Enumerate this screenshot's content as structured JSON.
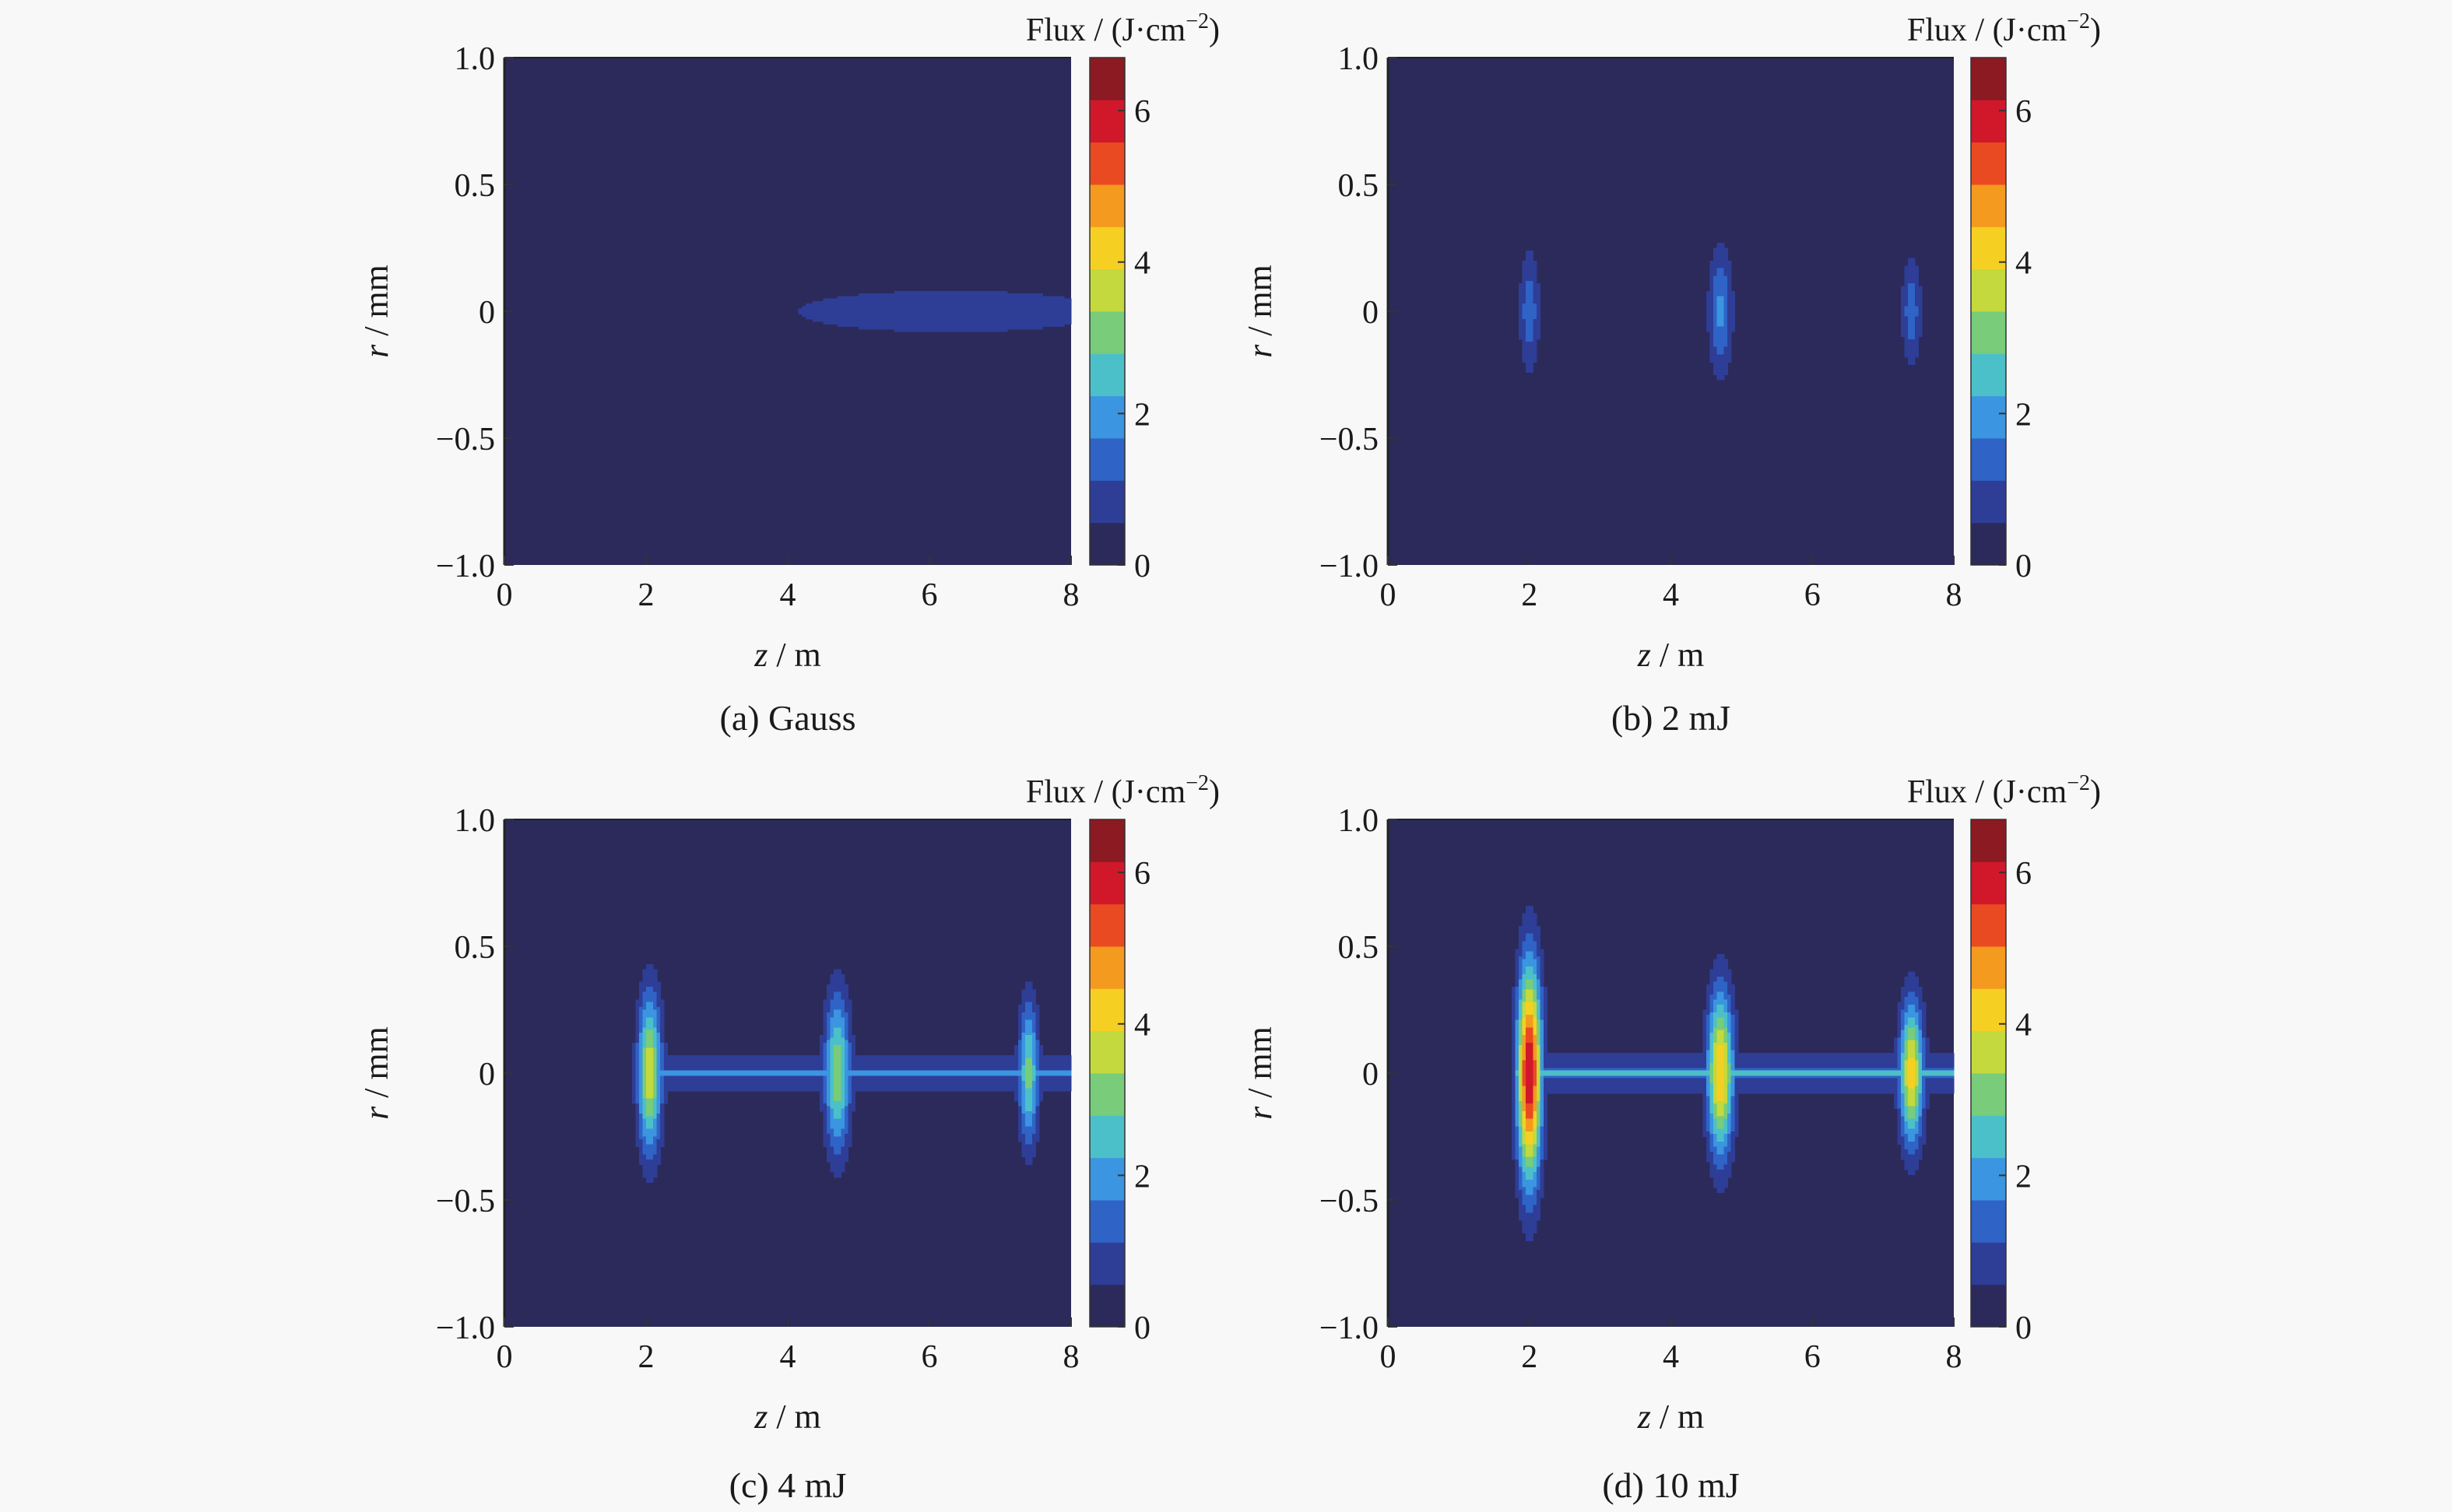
{
  "chart_data": [
    {
      "type": "heatmap",
      "caption": "(a) Gauss",
      "xlabel_var": "z",
      "xlabel_unit": " / m",
      "ylabel_var": "r",
      "ylabel_unit": " / mm",
      "colorbar_label": "Flux / (J·cm",
      "colorbar_exp": "−2",
      "colorbar_close": ")",
      "xlim": [
        0,
        8
      ],
      "ylim": [
        -1.0,
        1.0
      ],
      "clim": [
        0,
        6.7
      ],
      "xticks": [
        "0",
        "2",
        "4",
        "6",
        "8"
      ],
      "yticks": [
        "−1.0",
        "−0.5",
        "0",
        "0.5",
        "1.0"
      ],
      "cticks": [
        "0",
        "2",
        "4",
        "6"
      ],
      "features": [
        {
          "kind": "blob",
          "z": 6.3,
          "r": 0,
          "sz": 2.0,
          "sr": 0.075,
          "value": 1.0
        },
        {
          "kind": "blob",
          "z": 6.2,
          "r": 0,
          "sz": 2.9,
          "sr": 0.105,
          "value": 0.5
        }
      ]
    },
    {
      "type": "heatmap",
      "caption": "(b) 2 mJ",
      "xlabel_var": "z",
      "xlabel_unit": " / m",
      "ylabel_var": "r",
      "ylabel_unit": " / mm",
      "colorbar_label": "Flux / (J·cm",
      "colorbar_exp": "−2",
      "colorbar_close": ")",
      "xlim": [
        0,
        8
      ],
      "ylim": [
        -1.0,
        1.0
      ],
      "clim": [
        0,
        6.7
      ],
      "xticks": [
        "0",
        "2",
        "4",
        "6",
        "8"
      ],
      "yticks": [
        "−1.0",
        "−0.5",
        "0",
        "0.5",
        "1.0"
      ],
      "cticks": [
        "0",
        "2",
        "4",
        "6"
      ],
      "features": [
        {
          "kind": "band",
          "z0": 1.8,
          "z1": 8.0,
          "r": 0,
          "sr": 0.09,
          "value": 0.55
        },
        {
          "kind": "blob",
          "z": 2.0,
          "r": 0,
          "sz": 0.1,
          "sr": 0.17,
          "value": 1.5
        },
        {
          "kind": "blob",
          "z": 4.7,
          "r": 0,
          "sz": 0.12,
          "sr": 0.18,
          "value": 1.8
        },
        {
          "kind": "blob",
          "z": 7.4,
          "r": 0,
          "sz": 0.1,
          "sr": 0.15,
          "value": 1.5
        }
      ]
    },
    {
      "type": "heatmap",
      "caption": "(c) 4 mJ",
      "xlabel_var": "z",
      "xlabel_unit": " / m",
      "ylabel_var": "r",
      "ylabel_unit": " / mm",
      "colorbar_label": "Flux / (J·cm",
      "colorbar_exp": "−2",
      "colorbar_close": ")",
      "xlim": [
        0,
        8
      ],
      "ylim": [
        -1.0,
        1.0
      ],
      "clim": [
        0,
        6.7
      ],
      "xticks": [
        "0",
        "2",
        "4",
        "6",
        "8"
      ],
      "yticks": [
        "−1.0",
        "−0.5",
        "0",
        "0.5",
        "1.0"
      ],
      "cticks": [
        "0",
        "2",
        "4",
        "6"
      ],
      "features": [
        {
          "kind": "band",
          "z0": 1.9,
          "z1": 8.0,
          "r": 0,
          "sr": 0.11,
          "value": 0.7
        },
        {
          "kind": "band",
          "z0": 1.9,
          "z1": 8.0,
          "r": 0,
          "sr": 0.012,
          "value": 2.2
        },
        {
          "kind": "blob",
          "z": 2.05,
          "r": 0,
          "sz": 0.12,
          "sr": 0.22,
          "value": 3.8
        },
        {
          "kind": "blob",
          "z": 4.7,
          "r": 0,
          "sz": 0.13,
          "sr": 0.22,
          "value": 3.2
        },
        {
          "kind": "blob",
          "z": 7.4,
          "r": 0,
          "sz": 0.1,
          "sr": 0.2,
          "value": 3.0
        }
      ]
    },
    {
      "type": "heatmap",
      "caption": "(d) 10 mJ",
      "xlabel_var": "z",
      "xlabel_unit": " / m",
      "ylabel_var": "r",
      "ylabel_unit": " / mm",
      "colorbar_label": "Flux / (J·cm",
      "colorbar_exp": "−2",
      "colorbar_close": ")",
      "xlim": [
        0,
        8
      ],
      "ylim": [
        -1.0,
        1.0
      ],
      "clim": [
        0,
        6.7
      ],
      "xticks": [
        "0",
        "2",
        "4",
        "6",
        "8"
      ],
      "yticks": [
        "−1.0",
        "−0.5",
        "0",
        "0.5",
        "1.0"
      ],
      "cticks": [
        "0",
        "2",
        "4",
        "6"
      ],
      "features": [
        {
          "kind": "band",
          "z0": 1.8,
          "z1": 8.0,
          "r": 0,
          "sr": 0.11,
          "value": 0.75
        },
        {
          "kind": "band",
          "z0": 1.8,
          "z1": 8.0,
          "r": 0,
          "sr": 0.012,
          "value": 2.6
        },
        {
          "kind": "blob",
          "z": 2.0,
          "r": 0,
          "sz": 0.12,
          "sr": 0.3,
          "value": 6.2
        },
        {
          "kind": "blob",
          "z": 4.7,
          "r": 0,
          "sz": 0.13,
          "sr": 0.23,
          "value": 4.5
        },
        {
          "kind": "blob",
          "z": 7.4,
          "r": 0,
          "sz": 0.12,
          "sr": 0.2,
          "value": 4.2
        }
      ]
    }
  ],
  "colors": {
    "background": "#f8f8f8",
    "colormap": [
      "#2b2a5a",
      "#2e3d96",
      "#2f63c6",
      "#3b95e0",
      "#4cc0c8",
      "#78cc7a",
      "#c3d93d",
      "#f5d023",
      "#f49a1f",
      "#ea4a21",
      "#d1182b",
      "#8b1a22"
    ]
  }
}
